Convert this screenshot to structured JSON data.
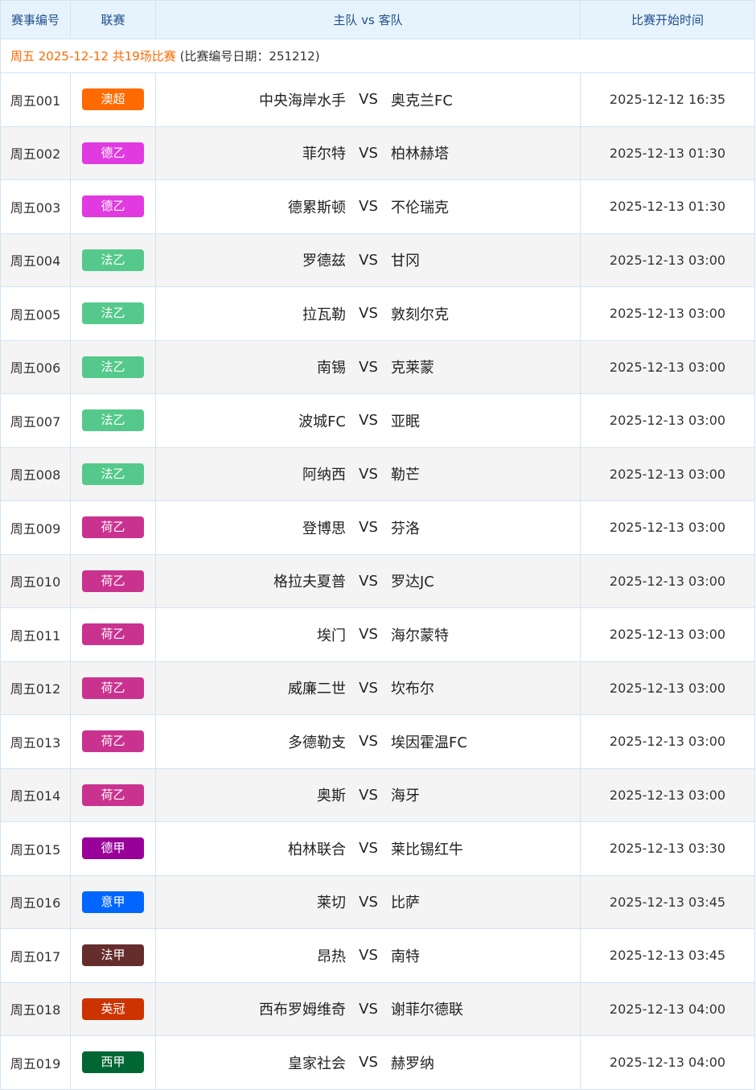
{
  "header": {
    "col_id": "赛事编号",
    "col_league": "联赛",
    "col_match": "主队 vs 客队",
    "col_time": "比赛开始时间"
  },
  "info": {
    "highlight": "周五 2025-12-12 共19场比赛",
    "note": "(比赛编号日期：251212)"
  },
  "vs_label": "VS",
  "league_colors": {
    "澳超": "#ff6a00",
    "德乙": "#e03ae0",
    "法乙": "#55c98b",
    "荷乙": "#c9338f",
    "德甲": "#990099",
    "意甲": "#0066ff",
    "法甲": "#662d2d",
    "英冠": "#cc3300",
    "西甲": "#006633"
  },
  "matches": [
    {
      "id": "周五001",
      "league": "澳超",
      "home": "中央海岸水手",
      "away": "奥克兰FC",
      "time": "2025-12-12 16:35"
    },
    {
      "id": "周五002",
      "league": "德乙",
      "home": "菲尔特",
      "away": "柏林赫塔",
      "time": "2025-12-13 01:30"
    },
    {
      "id": "周五003",
      "league": "德乙",
      "home": "德累斯顿",
      "away": "不伦瑞克",
      "time": "2025-12-13 01:30"
    },
    {
      "id": "周五004",
      "league": "法乙",
      "home": "罗德兹",
      "away": "甘冈",
      "time": "2025-12-13 03:00"
    },
    {
      "id": "周五005",
      "league": "法乙",
      "home": "拉瓦勒",
      "away": "敦刻尔克",
      "time": "2025-12-13 03:00"
    },
    {
      "id": "周五006",
      "league": "法乙",
      "home": "南锡",
      "away": "克莱蒙",
      "time": "2025-12-13 03:00"
    },
    {
      "id": "周五007",
      "league": "法乙",
      "home": "波城FC",
      "away": "亚眠",
      "time": "2025-12-13 03:00"
    },
    {
      "id": "周五008",
      "league": "法乙",
      "home": "阿纳西",
      "away": "勒芒",
      "time": "2025-12-13 03:00"
    },
    {
      "id": "周五009",
      "league": "荷乙",
      "home": "登博思",
      "away": "芬洛",
      "time": "2025-12-13 03:00"
    },
    {
      "id": "周五010",
      "league": "荷乙",
      "home": "格拉夫夏普",
      "away": "罗达JC",
      "time": "2025-12-13 03:00"
    },
    {
      "id": "周五011",
      "league": "荷乙",
      "home": "埃门",
      "away": "海尔蒙特",
      "time": "2025-12-13 03:00"
    },
    {
      "id": "周五012",
      "league": "荷乙",
      "home": "威廉二世",
      "away": "坎布尔",
      "time": "2025-12-13 03:00"
    },
    {
      "id": "周五013",
      "league": "荷乙",
      "home": "多德勒支",
      "away": "埃因霍温FC",
      "time": "2025-12-13 03:00"
    },
    {
      "id": "周五014",
      "league": "荷乙",
      "home": "奥斯",
      "away": "海牙",
      "time": "2025-12-13 03:00"
    },
    {
      "id": "周五015",
      "league": "德甲",
      "home": "柏林联合",
      "away": "莱比锡红牛",
      "time": "2025-12-13 03:30"
    },
    {
      "id": "周五016",
      "league": "意甲",
      "home": "莱切",
      "away": "比萨",
      "time": "2025-12-13 03:45"
    },
    {
      "id": "周五017",
      "league": "法甲",
      "home": "昂热",
      "away": "南特",
      "time": "2025-12-13 03:45"
    },
    {
      "id": "周五018",
      "league": "英冠",
      "home": "西布罗姆维奇",
      "away": "谢菲尔德联",
      "time": "2025-12-13 04:00"
    },
    {
      "id": "周五019",
      "league": "西甲",
      "home": "皇家社会",
      "away": "赫罗纳",
      "time": "2025-12-13 04:00"
    }
  ]
}
